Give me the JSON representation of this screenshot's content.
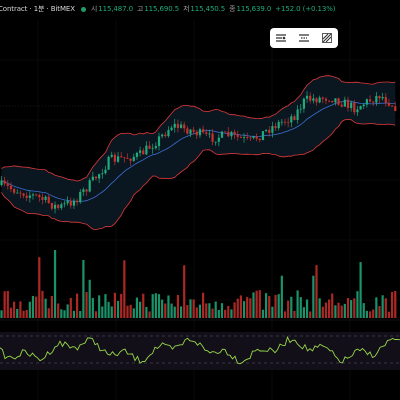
{
  "header": {
    "symbol": "Contract · 1분 · BitMEX",
    "stats": [
      {
        "key": "시",
        "value": "115,487.0"
      },
      {
        "key": "고",
        "value": "115,690.5"
      },
      {
        "key": "저",
        "value": "115,450.5"
      },
      {
        "key": "종",
        "value": "115,639.0"
      }
    ],
    "change": "+152.0 (+0.13%)"
  },
  "toolbar": {
    "icons": [
      "show-objects-icon",
      "hide-drawings-icon",
      "bar-pattern-icon"
    ]
  },
  "colors": {
    "up": "#1fab7d",
    "down": "#c9302c",
    "bb_band": "#e03a3a",
    "bb_mid": "#3c6fcf",
    "rsi": "#98d84a"
  }
}
